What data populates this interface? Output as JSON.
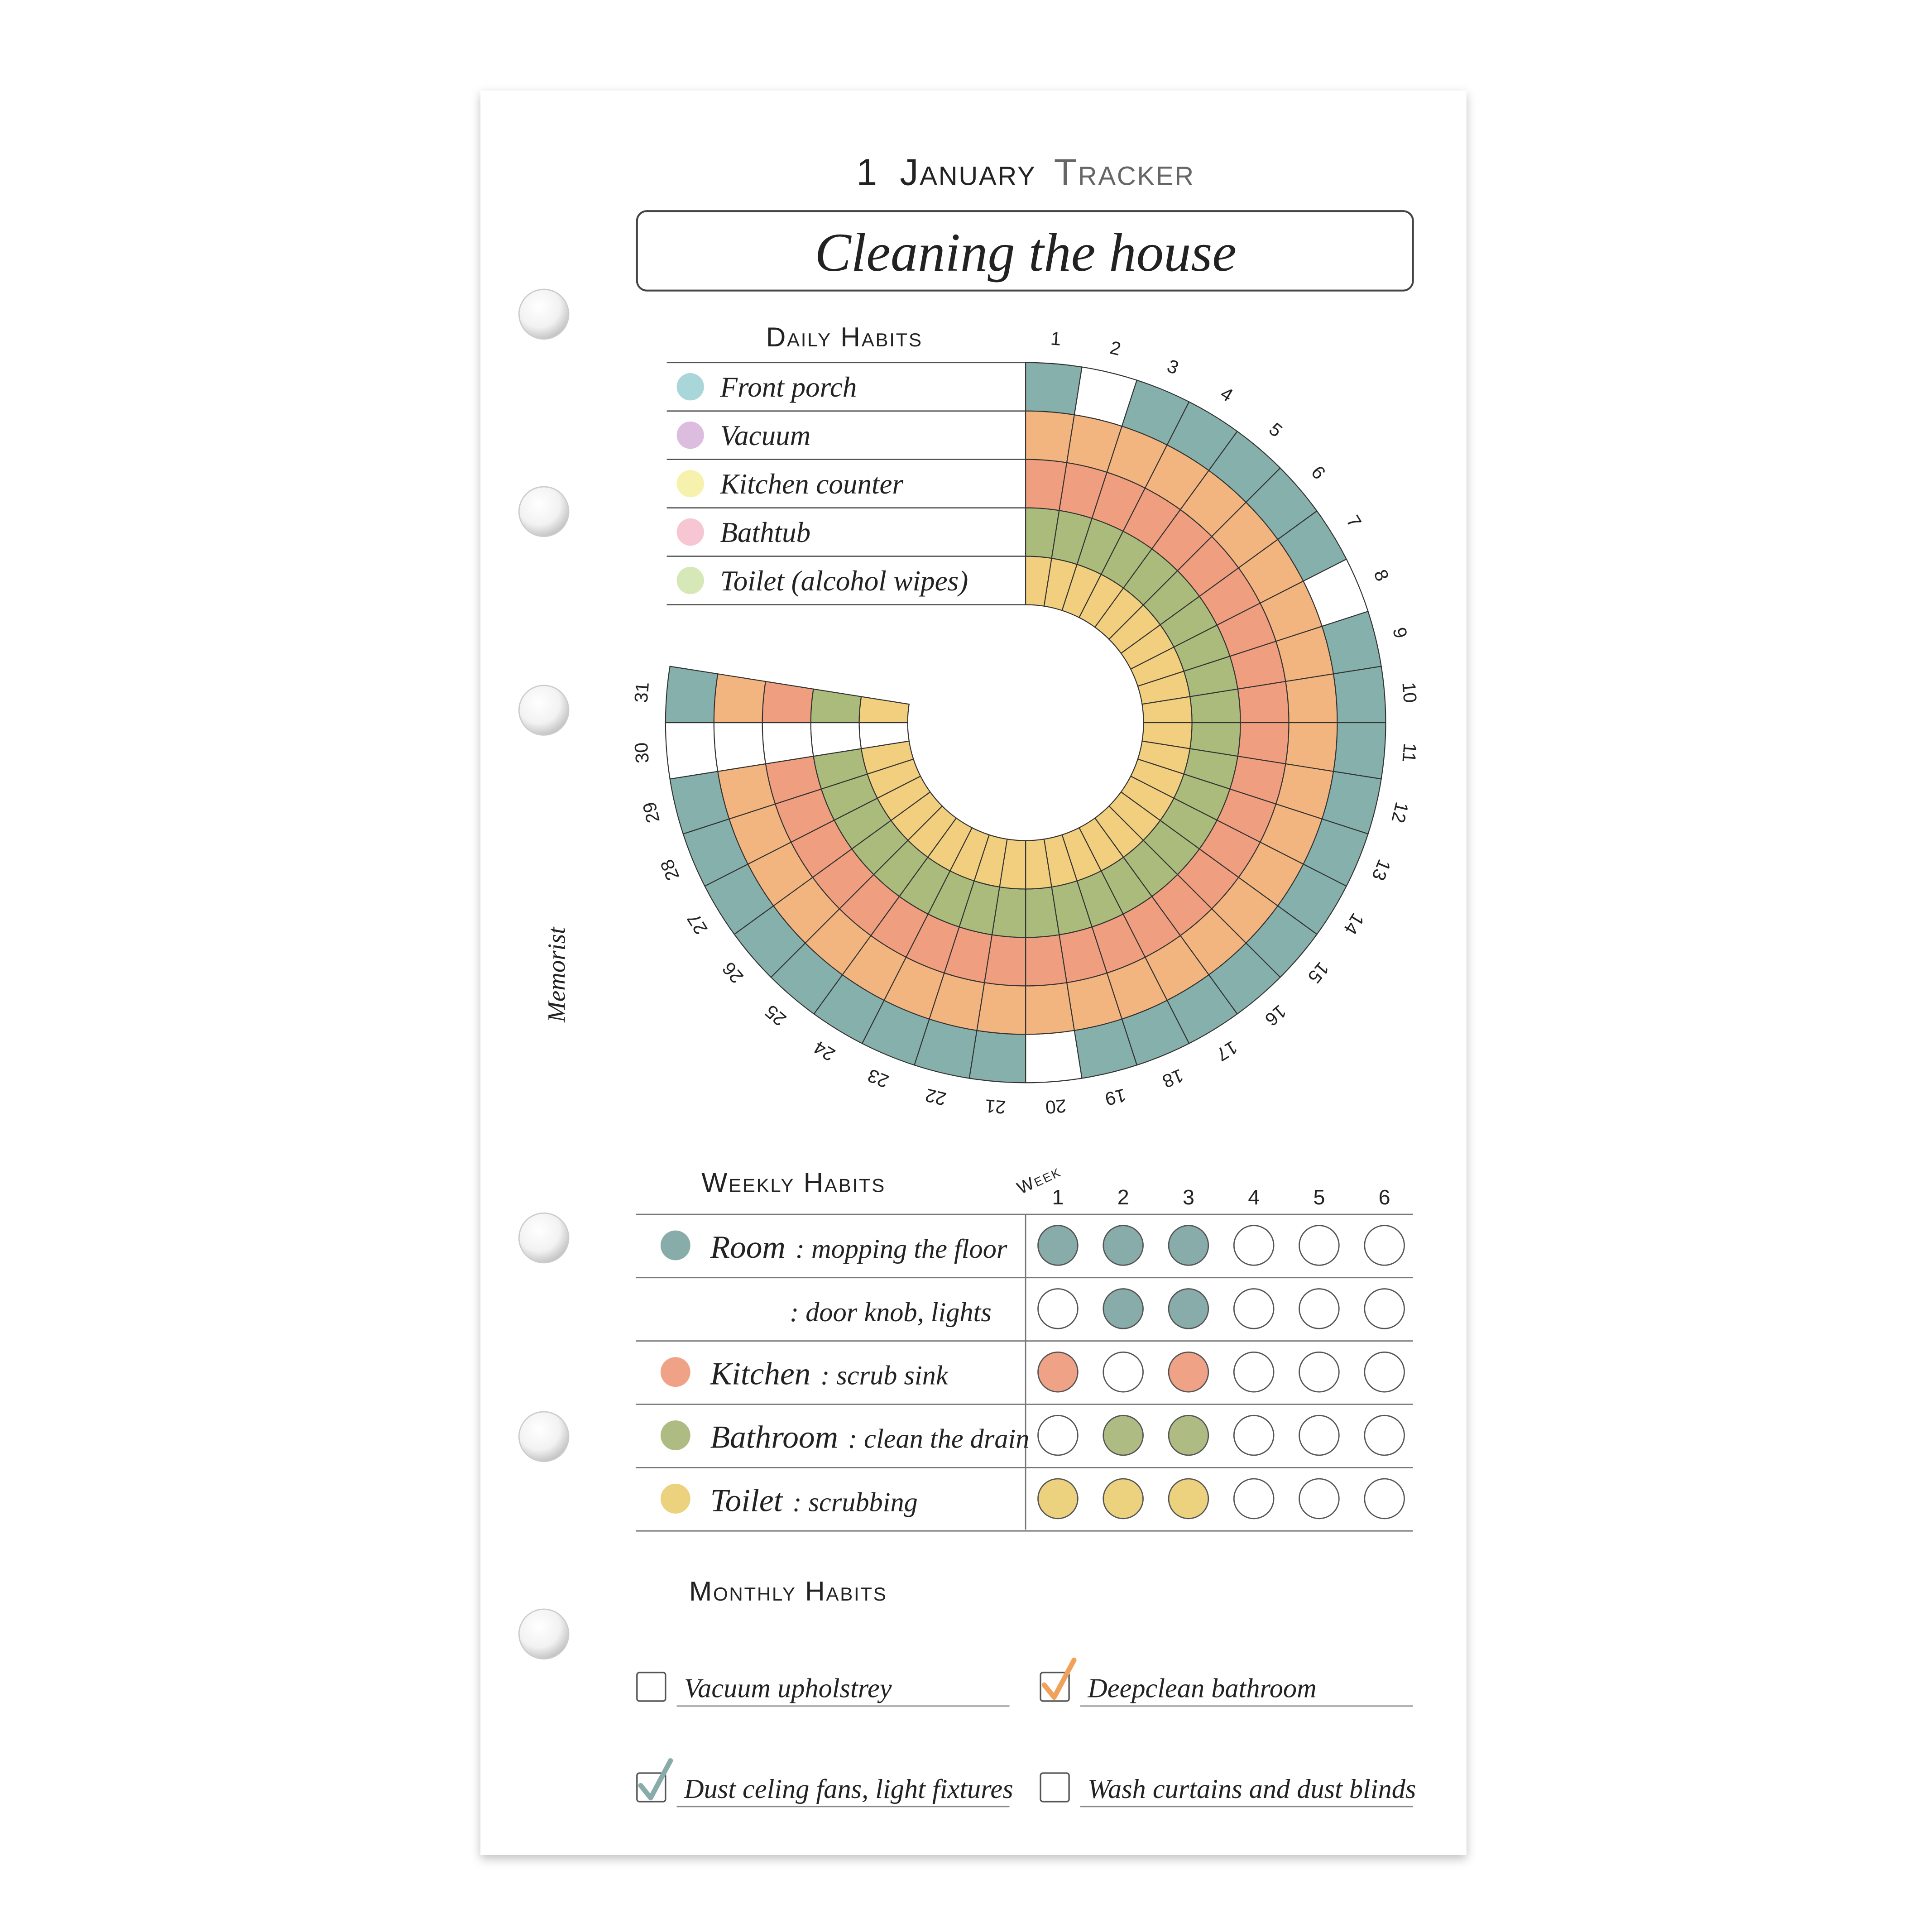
{
  "header": {
    "day": "1",
    "month": "January",
    "title": "Tracker",
    "subject": "Cleaning the house"
  },
  "daily": {
    "title": "Daily Habits",
    "days": [
      1,
      2,
      3,
      4,
      5,
      6,
      7,
      8,
      9,
      10,
      11,
      12,
      13,
      14,
      15,
      16,
      17,
      18,
      19,
      20,
      21,
      22,
      23,
      24,
      25,
      26,
      27,
      28,
      29,
      30,
      31
    ],
    "habits": [
      {
        "label": "Front porch",
        "dot_color": "#a9d6d8",
        "ring_color": "#86b0ab",
        "done": [
          true,
          false,
          true,
          true,
          true,
          true,
          true,
          false,
          true,
          true,
          true,
          true,
          true,
          true,
          true,
          true,
          true,
          true,
          true,
          false,
          true,
          true,
          true,
          true,
          true,
          true,
          true,
          true,
          true,
          false,
          true
        ]
      },
      {
        "label": "Vacuum",
        "dot_color": "#dcbde0",
        "ring_color": "#f3b57f",
        "done": [
          true,
          true,
          true,
          true,
          true,
          true,
          true,
          true,
          true,
          true,
          true,
          true,
          true,
          true,
          true,
          true,
          true,
          true,
          true,
          true,
          true,
          true,
          true,
          true,
          true,
          true,
          true,
          true,
          true,
          false,
          true
        ]
      },
      {
        "label": "Kitchen counter",
        "dot_color": "#f6f1ac",
        "ring_color": "#ef9e80",
        "done": [
          true,
          true,
          true,
          true,
          true,
          true,
          true,
          true,
          true,
          true,
          true,
          true,
          true,
          true,
          true,
          true,
          true,
          true,
          true,
          true,
          true,
          true,
          true,
          true,
          true,
          true,
          true,
          true,
          true,
          false,
          true
        ]
      },
      {
        "label": "Bathtub",
        "dot_color": "#f6c6d2",
        "ring_color": "#aabb7c",
        "done": [
          true,
          true,
          true,
          true,
          true,
          true,
          true,
          true,
          true,
          true,
          true,
          true,
          true,
          true,
          true,
          true,
          true,
          true,
          true,
          true,
          true,
          true,
          true,
          true,
          true,
          true,
          true,
          true,
          true,
          false,
          true
        ]
      },
      {
        "label": "Toilet (alcohol wipes)",
        "dot_color": "#d6e7b8",
        "ring_color": "#f1cf7e",
        "done": [
          true,
          true,
          true,
          true,
          true,
          true,
          true,
          true,
          true,
          true,
          true,
          true,
          true,
          true,
          true,
          true,
          true,
          true,
          true,
          true,
          true,
          true,
          true,
          true,
          true,
          true,
          true,
          true,
          true,
          false,
          true
        ]
      }
    ]
  },
  "weekly": {
    "title": "Weekly Habits",
    "week_label": "Week",
    "weeks": [
      1,
      2,
      3,
      4,
      5,
      6
    ],
    "rows": [
      {
        "area": "Room",
        "task": ": mopping the floor",
        "color": "#88aca9",
        "done": [
          true,
          true,
          true,
          false,
          false,
          false
        ]
      },
      {
        "task": ": door knob, lights",
        "color": "#88aca9",
        "done": [
          false,
          true,
          true,
          false,
          false,
          false
        ]
      },
      {
        "area": "Kitchen",
        "task": ": scrub sink",
        "color": "#f0a287",
        "done": [
          true,
          false,
          true,
          false,
          false,
          false
        ]
      },
      {
        "area": "Bathroom",
        "task": ": clean the drain",
        "color": "#aebc84",
        "done": [
          false,
          true,
          true,
          false,
          false,
          false
        ]
      },
      {
        "area": "Toilet",
        "task": ": scrubbing",
        "color": "#ecd17f",
        "done": [
          true,
          true,
          true,
          false,
          false,
          false
        ]
      }
    ]
  },
  "monthly": {
    "title": "Monthly Habits",
    "items": [
      {
        "label": "Vacuum upholstrey",
        "checked": false
      },
      {
        "label": "Deepclean bathroom",
        "checked": true,
        "check_color": "#f0a25c"
      },
      {
        "label": "Dust celing fans, light fixtures",
        "checked": true,
        "check_color": "#88aca9"
      },
      {
        "label": "Wash curtains and dust blinds",
        "checked": false
      }
    ]
  },
  "brand": "Memorist"
}
